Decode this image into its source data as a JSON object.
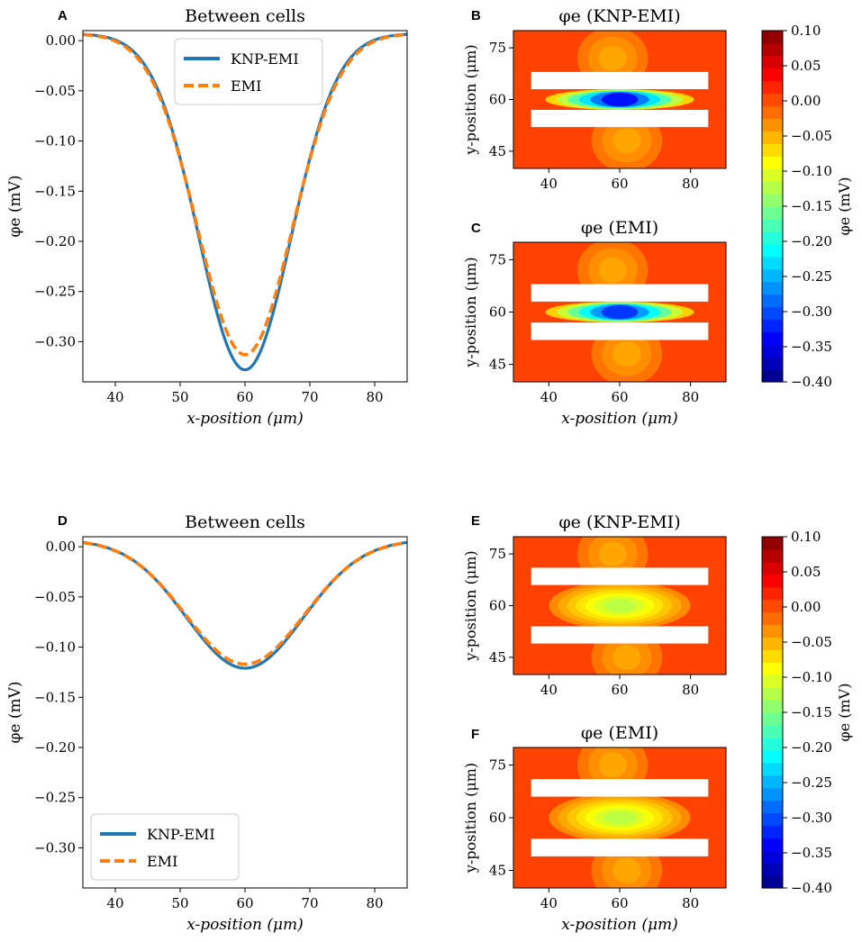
{
  "chart_data": [
    {
      "panel": "A",
      "type": "line",
      "title": "Between cells",
      "xlabel": "x-position (μm)",
      "ylabel": "φe (mV)",
      "xlim": [
        35,
        85
      ],
      "ylim": [
        -0.34,
        0.01
      ],
      "xticks": [
        40,
        50,
        60,
        70,
        80
      ],
      "yticks": [
        0.0,
        -0.05,
        -0.1,
        -0.15,
        -0.2,
        -0.25,
        -0.3
      ],
      "ytick_labels": [
        "0.00",
        "−0.05",
        "−0.10",
        "−0.15",
        "−0.20",
        "−0.25",
        "−0.30"
      ],
      "legend_position": "top-center",
      "series": [
        {
          "name": "KNP-EMI",
          "color": "#1f77b4",
          "style": "solid",
          "center": 60,
          "sigma": 7.1,
          "min": -0.328,
          "edge": 0.007
        },
        {
          "name": "EMI",
          "color": "#ff7f0e",
          "style": "dashed",
          "center": 60,
          "sigma": 7.3,
          "min": -0.313,
          "edge": 0.007
        }
      ]
    },
    {
      "panel": "B",
      "type": "heatmap",
      "title": "φe (KNP-EMI)",
      "xlabel": "",
      "ylabel": "y-position (μm)",
      "xlim": [
        30,
        90
      ],
      "ylim": [
        40,
        80
      ],
      "xticks": [
        40,
        60,
        80
      ],
      "yticks": [
        45,
        60,
        75
      ],
      "cells": [
        [
          35,
          85,
          52,
          57
        ],
        [
          35,
          85,
          63,
          68
        ]
      ],
      "minimum": -0.33,
      "layout": "narrow"
    },
    {
      "panel": "C",
      "type": "heatmap",
      "title": "φe (EMI)",
      "xlabel": "x-position (μm)",
      "ylabel": "y-position (μm)",
      "xlim": [
        30,
        90
      ],
      "ylim": [
        40,
        80
      ],
      "xticks": [
        40,
        60,
        80
      ],
      "yticks": [
        45,
        60,
        75
      ],
      "cells": [
        [
          35,
          85,
          52,
          57
        ],
        [
          35,
          85,
          63,
          68
        ]
      ],
      "minimum": -0.31,
      "layout": "narrow"
    },
    {
      "panel": "D",
      "type": "line",
      "title": "Between cells",
      "xlabel": "x-position (μm)",
      "ylabel": "φe (mV)",
      "xlim": [
        35,
        85
      ],
      "ylim": [
        -0.34,
        0.01
      ],
      "xticks": [
        40,
        50,
        60,
        70,
        80
      ],
      "yticks": [
        0.0,
        -0.05,
        -0.1,
        -0.15,
        -0.2,
        -0.25,
        -0.3
      ],
      "ytick_labels": [
        "0.00",
        "−0.05",
        "−0.10",
        "−0.15",
        "−0.20",
        "−0.25",
        "−0.30"
      ],
      "legend_position": "bottom-left",
      "series": [
        {
          "name": "KNP-EMI",
          "color": "#1f77b4",
          "style": "solid",
          "center": 60,
          "sigma": 9.0,
          "min": -0.121,
          "edge": 0.007
        },
        {
          "name": "EMI",
          "color": "#ff7f0e",
          "style": "dashed",
          "center": 60,
          "sigma": 9.1,
          "min": -0.117,
          "edge": 0.007
        }
      ]
    },
    {
      "panel": "E",
      "type": "heatmap",
      "title": "φe (KNP-EMI)",
      "xlabel": "",
      "ylabel": "y-position (μm)",
      "xlim": [
        30,
        90
      ],
      "ylim": [
        40,
        80
      ],
      "xticks": [
        40,
        60,
        80
      ],
      "yticks": [
        45,
        60,
        75
      ],
      "cells": [
        [
          35,
          85,
          49,
          54
        ],
        [
          35,
          85,
          66,
          71
        ]
      ],
      "minimum": -0.12,
      "layout": "wide"
    },
    {
      "panel": "F",
      "type": "heatmap",
      "title": "φe (EMI)",
      "xlabel": "x-position (μm)",
      "ylabel": "y-position (μm)",
      "xlim": [
        30,
        90
      ],
      "ylim": [
        40,
        80
      ],
      "xticks": [
        40,
        60,
        80
      ],
      "yticks": [
        45,
        60,
        75
      ],
      "cells": [
        [
          35,
          85,
          49,
          54
        ],
        [
          35,
          85,
          66,
          71
        ]
      ],
      "minimum": -0.12,
      "layout": "wide"
    }
  ],
  "colorbars": [
    {
      "label": "φe (mV)",
      "range": [
        -0.4,
        0.1
      ],
      "ticks": [
        "0.10",
        "0.05",
        "0.00",
        "−0.05",
        "−0.10",
        "−0.15",
        "−0.20",
        "−0.25",
        "−0.30",
        "−0.35",
        "−0.40"
      ]
    },
    {
      "label": "φe (mV)",
      "range": [
        -0.4,
        0.1
      ],
      "ticks": [
        "0.10",
        "0.05",
        "0.00",
        "−0.05",
        "−0.10",
        "−0.15",
        "−0.20",
        "−0.25",
        "−0.30",
        "−0.35",
        "−0.40"
      ]
    }
  ]
}
